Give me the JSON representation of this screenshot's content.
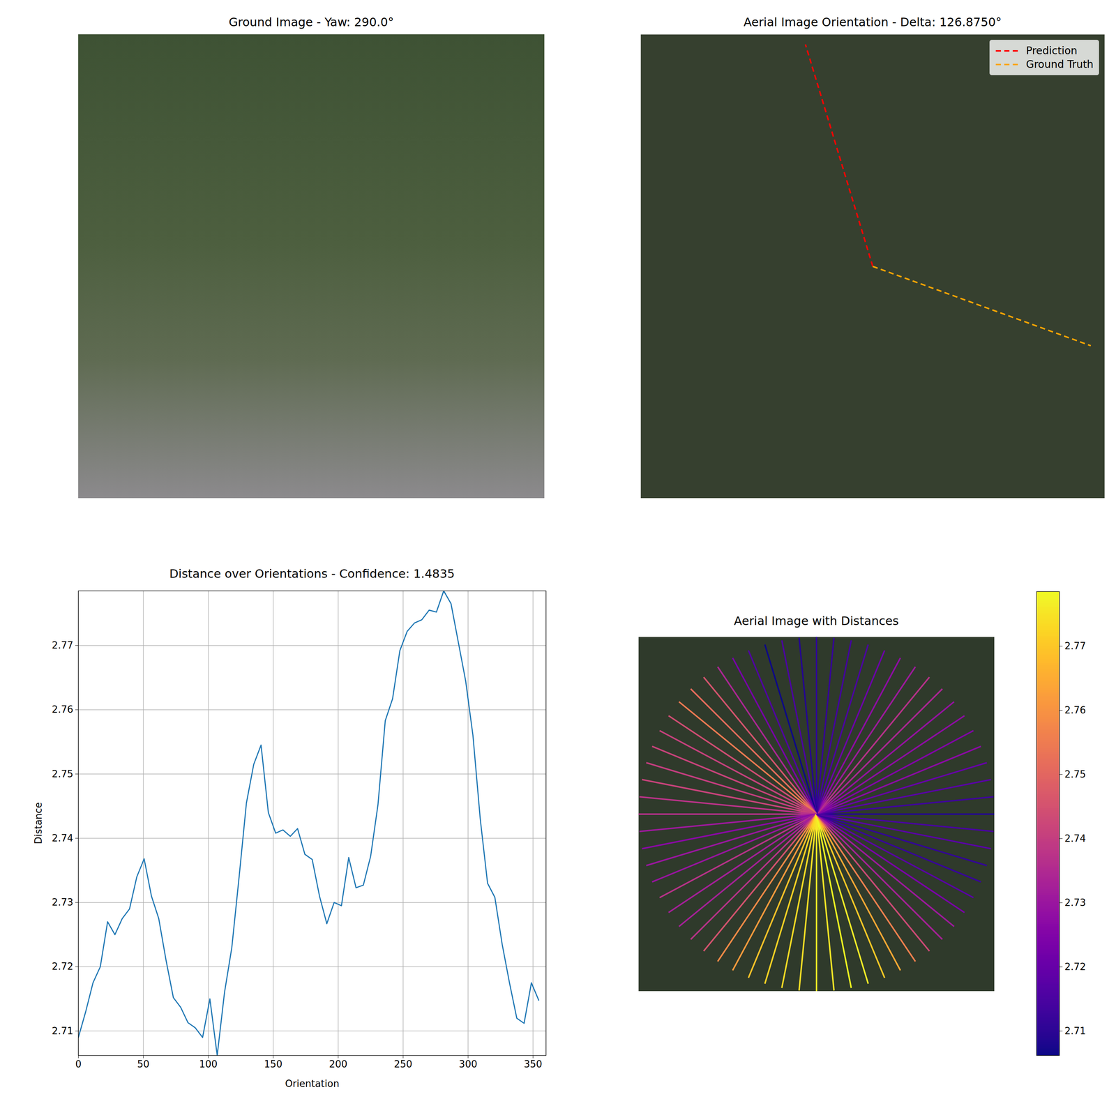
{
  "chart_data": [
    {
      "type": "image",
      "title": "Ground Image - Yaw: 290.0°"
    },
    {
      "type": "orientation",
      "title": "Aerial Image Orientation - Delta: 126.8750°",
      "legend": "upper right",
      "series": [
        {
          "name": "Prediction",
          "color": "#ff0000",
          "line_style": "dashed",
          "values": [
            106.875
          ]
        },
        {
          "name": "Ground Truth",
          "color": "#ffa500",
          "line_style": "dashed",
          "values": [
            340
          ]
        }
      ]
    },
    {
      "type": "line",
      "title": "Distance over Orientations - Confidence: 1.4835",
      "x_label": "Orientation",
      "y_label": "Distance",
      "color": "#1f77b4",
      "grid": true,
      "x": [
        0,
        5.625,
        11.25,
        16.875,
        22.5,
        28.125,
        33.75,
        39.375,
        45,
        50.625,
        56.25,
        61.875,
        67.5,
        73.125,
        78.75,
        84.375,
        90,
        95.625,
        101.25,
        106.875,
        112.5,
        118.125,
        123.75,
        129.375,
        135,
        140.625,
        146.25,
        151.875,
        157.5,
        163.125,
        168.75,
        174.375,
        180,
        185.625,
        191.25,
        196.875,
        202.5,
        208.125,
        213.75,
        219.375,
        225,
        230.625,
        236.25,
        241.875,
        247.5,
        253.125,
        258.75,
        264.375,
        270,
        275.625,
        281.25,
        286.875,
        292.5,
        298.125,
        303.75,
        309.375,
        315,
        320.625,
        326.25,
        331.875,
        337.5,
        343.125,
        348.75,
        354.375
      ],
      "values": [
        2.709,
        2.713,
        2.7175,
        2.72,
        2.727,
        2.725,
        2.7275,
        2.729,
        2.734,
        2.7368,
        2.731,
        2.7275,
        2.721,
        2.7152,
        2.7137,
        2.7113,
        2.7105,
        2.709,
        2.715,
        2.7062,
        2.716,
        2.723,
        2.734,
        2.7455,
        2.7515,
        2.7545,
        2.744,
        2.7408,
        2.7413,
        2.7403,
        2.7415,
        2.7375,
        2.7367,
        2.731,
        2.7267,
        2.73,
        2.7295,
        2.737,
        2.7323,
        2.7327,
        2.7372,
        2.7452,
        2.7583,
        2.7617,
        2.7692,
        2.7722,
        2.7735,
        2.774,
        2.7755,
        2.7752,
        2.7785,
        2.7765,
        2.7705,
        2.7645,
        2.756,
        2.743,
        2.733,
        2.7308,
        2.7235,
        2.7175,
        2.712,
        2.7112,
        2.7175,
        2.7148
      ],
      "xlim": [
        0,
        360
      ],
      "ylim": [
        2.7062,
        2.7785
      ],
      "xticks": [
        0,
        50,
        100,
        150,
        200,
        250,
        300,
        350
      ],
      "yticks": [
        2.71,
        2.72,
        2.73,
        2.74,
        2.75,
        2.76,
        2.77
      ]
    },
    {
      "type": "radial",
      "title": "Aerial Image with Distances",
      "color": "plasma",
      "x": [
        0,
        5.625,
        11.25,
        16.875,
        22.5,
        28.125,
        33.75,
        39.375,
        45,
        50.625,
        56.25,
        61.875,
        67.5,
        73.125,
        78.75,
        84.375,
        90,
        95.625,
        101.25,
        106.875,
        112.5,
        118.125,
        123.75,
        129.375,
        135,
        140.625,
        146.25,
        151.875,
        157.5,
        163.125,
        168.75,
        174.375,
        180,
        185.625,
        191.25,
        196.875,
        202.5,
        208.125,
        213.75,
        219.375,
        225,
        230.625,
        236.25,
        241.875,
        247.5,
        253.125,
        258.75,
        264.375,
        270,
        275.625,
        281.25,
        286.875,
        292.5,
        298.125,
        303.75,
        309.375,
        315,
        320.625,
        326.25,
        331.875,
        337.5,
        343.125,
        348.75,
        354.375
      ],
      "values": [
        2.709,
        2.713,
        2.7175,
        2.72,
        2.727,
        2.725,
        2.7275,
        2.729,
        2.734,
        2.7368,
        2.731,
        2.7275,
        2.721,
        2.7152,
        2.7137,
        2.7113,
        2.7105,
        2.709,
        2.715,
        2.7062,
        2.716,
        2.723,
        2.734,
        2.7455,
        2.7515,
        2.7545,
        2.744,
        2.7408,
        2.7413,
        2.7403,
        2.7415,
        2.7375,
        2.7367,
        2.731,
        2.7267,
        2.73,
        2.7295,
        2.737,
        2.7323,
        2.7327,
        2.7372,
        2.7452,
        2.7583,
        2.7617,
        2.7692,
        2.7722,
        2.7735,
        2.774,
        2.7755,
        2.7752,
        2.7785,
        2.7765,
        2.7705,
        2.7645,
        2.756,
        2.743,
        2.733,
        2.7308,
        2.7235,
        2.7175,
        2.712,
        2.7112,
        2.7175,
        2.7148
      ],
      "colorbar": {
        "range": [
          2.7062,
          2.7785
        ],
        "ticks": [
          2.71,
          2.72,
          2.73,
          2.74,
          2.75,
          2.76,
          2.77
        ]
      }
    }
  ]
}
